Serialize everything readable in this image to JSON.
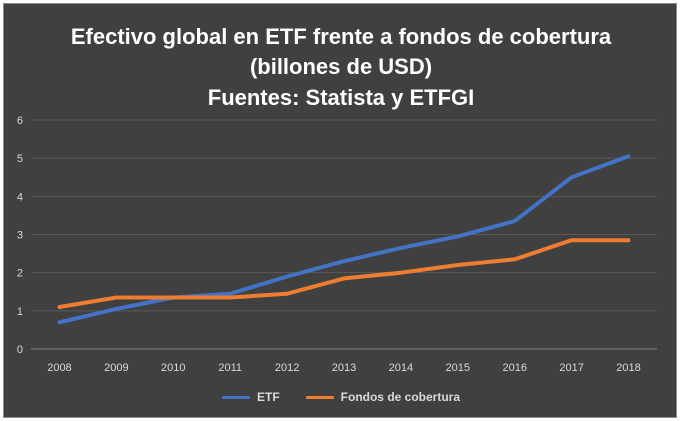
{
  "chart_data": {
    "type": "line",
    "title_lines": [
      "Efectivo global en ETF frente a fondos de cobertura",
      "(billones de USD)",
      "Fuentes: Statista y ETFGI"
    ],
    "categories": [
      "2008",
      "2009",
      "2010",
      "2011",
      "2012",
      "2013",
      "2014",
      "2015",
      "2016",
      "2017",
      "2018"
    ],
    "series": [
      {
        "name": "ETF",
        "color": "#4472c4",
        "values": [
          0.7,
          1.05,
          1.35,
          1.45,
          1.9,
          2.3,
          2.65,
          2.95,
          3.35,
          4.5,
          5.05
        ]
      },
      {
        "name": "Fondos de cobertura",
        "color": "#ed7d31",
        "values": [
          1.1,
          1.35,
          1.35,
          1.35,
          1.45,
          1.85,
          2.0,
          2.2,
          2.35,
          2.85,
          2.85
        ]
      }
    ],
    "yticks": [
      "0",
      "1",
      "2",
      "3",
      "4",
      "5",
      "6"
    ],
    "ylim": [
      0,
      6
    ],
    "grid": true,
    "legend_position": "bottom",
    "xlabel": "",
    "ylabel": ""
  }
}
